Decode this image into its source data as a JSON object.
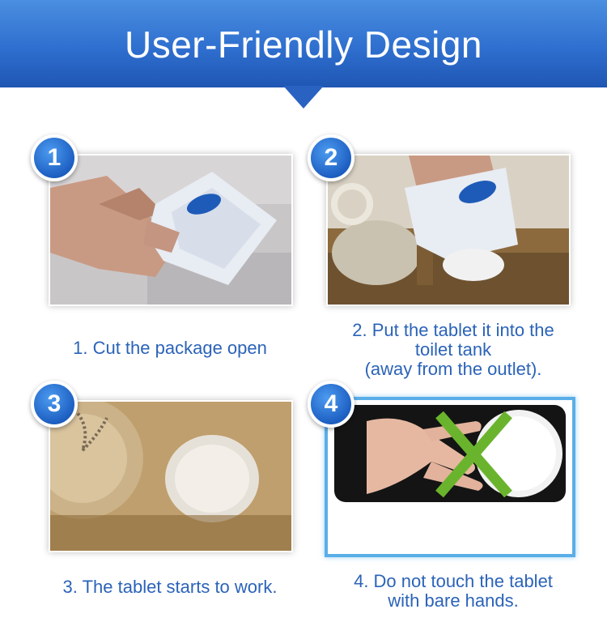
{
  "header": {
    "title": "User-Friendly Design"
  },
  "steps": [
    {
      "number": "1",
      "caption": [
        "1.  Cut the package open"
      ]
    },
    {
      "number": "2",
      "caption": [
        "2.  Put the tablet it into the",
        "toilet tank",
        "(away from the outlet)."
      ]
    },
    {
      "number": "3",
      "caption": [
        "3.  The tablet starts to work."
      ]
    },
    {
      "number": "4",
      "caption": [
        "4.  Do not touch the tablet",
        "with bare hands."
      ]
    }
  ],
  "colors": {
    "banner": "#2f6fcf",
    "caption": "#2b63b8",
    "highlight_frame": "#5aaee8",
    "cross": "#6ab42d"
  }
}
